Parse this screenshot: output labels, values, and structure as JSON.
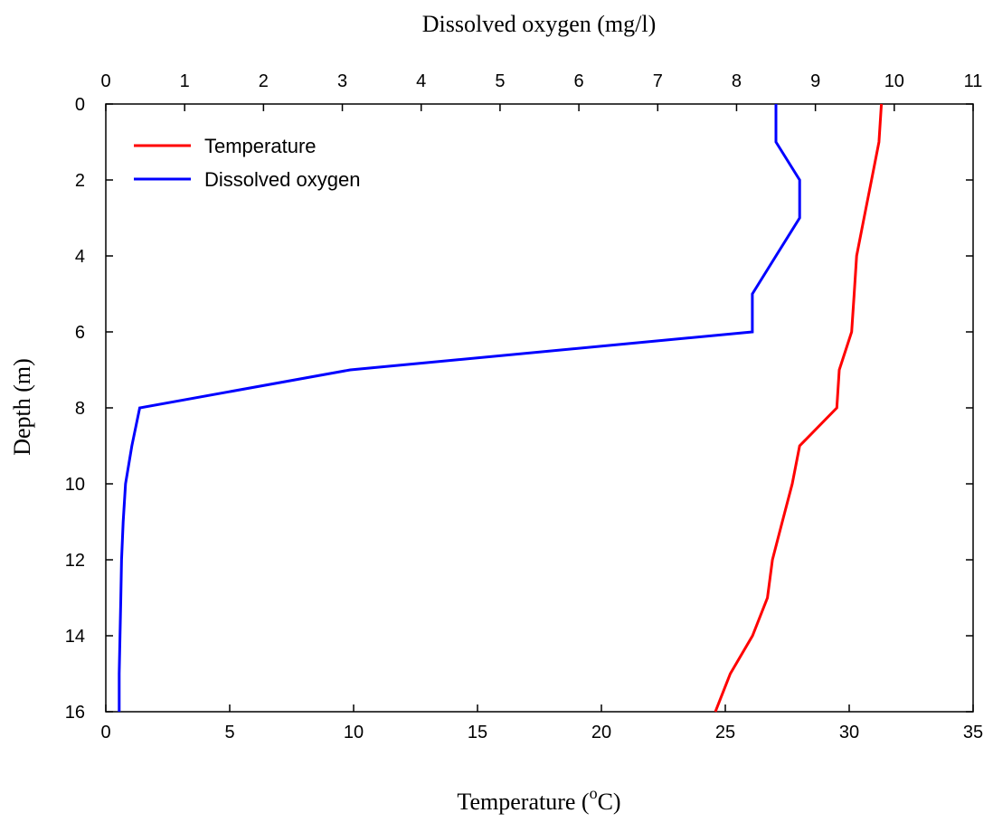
{
  "chart_data": {
    "type": "line",
    "title": "",
    "top_axis": {
      "label": "Dissolved oxygen (mg/l)",
      "range": [
        0,
        11
      ],
      "ticks": [
        0,
        1,
        2,
        3,
        4,
        5,
        6,
        7,
        8,
        9,
        10,
        11
      ]
    },
    "bottom_axis": {
      "label_main": "Temperature (",
      "label_sup": "o",
      "label_end": "C)",
      "range": [
        0,
        35
      ],
      "ticks": [
        0,
        5,
        10,
        15,
        20,
        25,
        30,
        35
      ]
    },
    "y_axis": {
      "label": "Depth (m)",
      "range": [
        0,
        16
      ],
      "inverted": true,
      "ticks": [
        0,
        2,
        4,
        6,
        8,
        10,
        12,
        14,
        16
      ]
    },
    "grid": false,
    "legend_position": "top-left",
    "series": [
      {
        "name": "Temperature",
        "axis": "bottom",
        "color": "#ff0000",
        "points": [
          {
            "x": 31.3,
            "y": 0
          },
          {
            "x": 31.2,
            "y": 1
          },
          {
            "x": 30.9,
            "y": 2
          },
          {
            "x": 30.6,
            "y": 3
          },
          {
            "x": 30.3,
            "y": 4
          },
          {
            "x": 30.2,
            "y": 5
          },
          {
            "x": 30.1,
            "y": 6
          },
          {
            "x": 29.6,
            "y": 7
          },
          {
            "x": 29.5,
            "y": 8
          },
          {
            "x": 28.0,
            "y": 9
          },
          {
            "x": 27.7,
            "y": 10
          },
          {
            "x": 27.3,
            "y": 11
          },
          {
            "x": 26.9,
            "y": 12
          },
          {
            "x": 26.7,
            "y": 13
          },
          {
            "x": 26.1,
            "y": 14
          },
          {
            "x": 25.2,
            "y": 15
          },
          {
            "x": 24.6,
            "y": 16
          }
        ]
      },
      {
        "name": "Dissolved oxygen",
        "axis": "top",
        "color": "#0000ff",
        "points": [
          {
            "x": 8.5,
            "y": 0
          },
          {
            "x": 8.5,
            "y": 1
          },
          {
            "x": 8.8,
            "y": 2
          },
          {
            "x": 8.8,
            "y": 3
          },
          {
            "x": 8.5,
            "y": 4
          },
          {
            "x": 8.2,
            "y": 5
          },
          {
            "x": 8.2,
            "y": 6
          },
          {
            "x": 3.1,
            "y": 7
          },
          {
            "x": 0.43,
            "y": 8
          },
          {
            "x": 0.33,
            "y": 9
          },
          {
            "x": 0.25,
            "y": 10
          },
          {
            "x": 0.22,
            "y": 11
          },
          {
            "x": 0.2,
            "y": 12
          },
          {
            "x": 0.19,
            "y": 13
          },
          {
            "x": 0.18,
            "y": 14
          },
          {
            "x": 0.17,
            "y": 15
          },
          {
            "x": 0.17,
            "y": 16
          }
        ]
      }
    ]
  }
}
